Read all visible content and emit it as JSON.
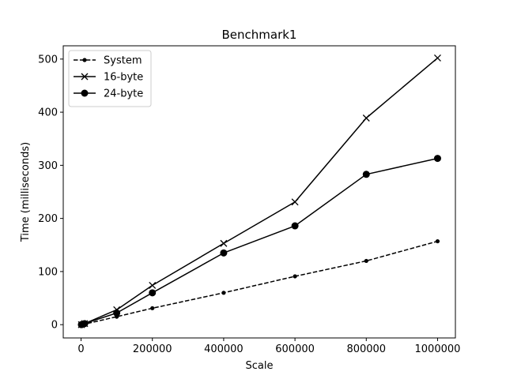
{
  "chart_data": {
    "type": "line",
    "title": "Benchmark1",
    "xlabel": "Scale",
    "ylabel": "Time (milliseconds)",
    "xlim": [
      -50000,
      1050000
    ],
    "ylim": [
      -25,
      525
    ],
    "x_ticks": [
      0,
      200000,
      400000,
      600000,
      800000,
      1000000
    ],
    "y_ticks": [
      0,
      100,
      200,
      300,
      400,
      500
    ],
    "grid": false,
    "legend_position": "top-left",
    "x": [
      1000,
      10000,
      100000,
      200000,
      400000,
      600000,
      800000,
      1000000
    ],
    "series": [
      {
        "name": "System",
        "line_style": "dashed",
        "marker": "small-dot",
        "color": "#000000",
        "values": [
          0,
          1,
          15,
          31,
          60,
          91,
          120,
          157
        ]
      },
      {
        "name": "16-byte",
        "line_style": "solid",
        "marker": "x",
        "color": "#000000",
        "values": [
          0,
          2,
          28,
          74,
          153,
          231,
          389,
          502
        ]
      },
      {
        "name": "24-byte",
        "line_style": "solid",
        "marker": "dot",
        "color": "#000000",
        "values": [
          0,
          2,
          22,
          60,
          135,
          186,
          283,
          313
        ]
      }
    ]
  }
}
